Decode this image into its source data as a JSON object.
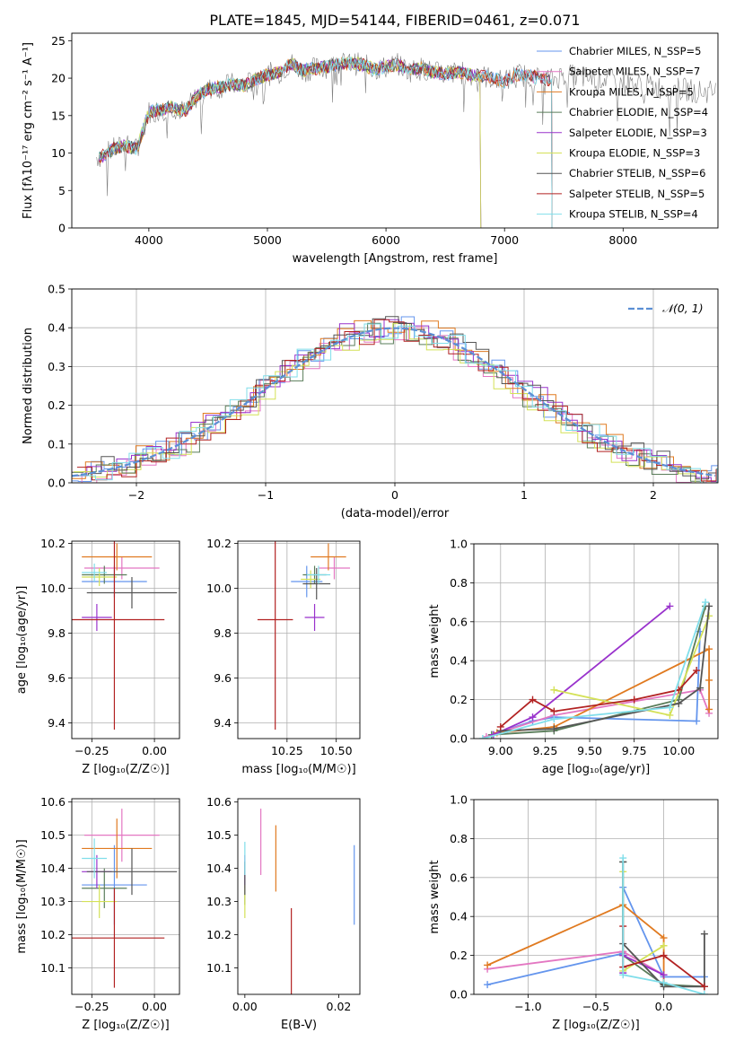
{
  "figure": {
    "title": "PLATE=1845, MJD=54144, FIBERID=0461, z=0.071"
  },
  "chart_data": [
    {
      "id": "spectrum",
      "type": "line",
      "xlabel": "wavelength [Angstrom, rest frame]",
      "ylabel": "Flux [fλ10⁻¹⁷ erg cm⁻² s⁻¹ A⁻¹]",
      "xlim": [
        3350,
        8800
      ],
      "ylim": [
        0,
        26
      ],
      "xticks": [
        4000,
        5000,
        6000,
        7000,
        8000
      ],
      "yticks": [
        0,
        5,
        10,
        15,
        20,
        25
      ],
      "grid": false,
      "legend_position": "top-right",
      "observed": {
        "x": [
          3600,
          3700,
          3800,
          3900,
          4000,
          4100,
          4200,
          4300,
          4400,
          4500,
          4600,
          4700,
          4800,
          4900,
          5000,
          5100,
          5200,
          5300,
          5400,
          5500,
          5600,
          5700,
          5800,
          5900,
          6000,
          6100,
          6200,
          6300,
          6400,
          6500,
          6600,
          6700,
          6800,
          6900,
          7000,
          7100,
          7200,
          7300,
          7400,
          7500,
          7600,
          7700,
          7800,
          7900,
          8000,
          8100,
          8200,
          8300,
          8400,
          8500,
          8600,
          8700
        ],
        "y": [
          9.5,
          10.5,
          11.0,
          10.5,
          15.5,
          15.8,
          16.2,
          15.5,
          17.5,
          18.5,
          18.8,
          19.2,
          19.0,
          19.8,
          20.5,
          20.8,
          22.0,
          21.0,
          21.3,
          21.5,
          21.8,
          22.0,
          21.8,
          21.2,
          21.5,
          21.8,
          21.0,
          21.3,
          20.8,
          20.5,
          20.8,
          20.5,
          20.3,
          20.0,
          19.5,
          20.5,
          20.3,
          20.0,
          19.8,
          20.5,
          20.2,
          20.0,
          20.0,
          19.8,
          19.5,
          19.2,
          19.0,
          18.8,
          18.6,
          18.5,
          18.3,
          18.2
        ]
      },
      "series": [
        {
          "name": "Chabrier MILES, N_SSP=5",
          "color": "#6495ed",
          "xmax": 7400
        },
        {
          "name": "Salpeter MILES, N_SSP=7",
          "color": "#e377c2",
          "xmax": 7400
        },
        {
          "name": "Kroupa MILES, N_SSP=5",
          "color": "#e07a20",
          "xmax": 7400
        },
        {
          "name": "Chabrier ELODIE, N_SSP=4",
          "color": "#5a7d5a",
          "xmax": 6800
        },
        {
          "name": "Salpeter ELODIE, N_SSP=3",
          "color": "#9932cc",
          "xmax": 6800
        },
        {
          "name": "Kroupa ELODIE, N_SSP=3",
          "color": "#d4e157",
          "xmax": 6800
        },
        {
          "name": "Chabrier STELIB, N_SSP=6",
          "color": "#555555",
          "xmax": 7400
        },
        {
          "name": "Salpeter STELIB, N_SSP=5",
          "color": "#b22222",
          "xmax": 7400
        },
        {
          "name": "Kroupa STELIB, N_SSP=4",
          "color": "#80deea",
          "xmax": 7400
        }
      ]
    },
    {
      "id": "residuals",
      "type": "line",
      "xlabel": "(data-model)/error",
      "ylabel": "Normed distribution",
      "xlim": [
        -2.5,
        2.5
      ],
      "ylim": [
        0,
        0.5
      ],
      "xticks": [
        -2,
        -1,
        0,
        1,
        2
      ],
      "yticks": [
        0.0,
        0.1,
        0.2,
        0.3,
        0.4,
        0.5
      ],
      "grid": true,
      "legend_position": "top-right",
      "gaussian": {
        "name": "𝒩(0, 1)",
        "color": "#5b8fd4",
        "mean": 0,
        "sigma": 1
      },
      "histograms": [
        {
          "color": "#6495ed",
          "offset": 0.006
        },
        {
          "color": "#e377c2",
          "offset": -0.012
        },
        {
          "color": "#e07a20",
          "offset": 0.01
        },
        {
          "color": "#5a7d5a",
          "offset": -0.02
        },
        {
          "color": "#9932cc",
          "offset": 0.018
        },
        {
          "color": "#d4e157",
          "offset": -0.025
        },
        {
          "color": "#555555",
          "offset": 0.014
        },
        {
          "color": "#b22222",
          "offset": -0.008
        },
        {
          "color": "#80deea",
          "offset": 0.004
        }
      ]
    },
    {
      "id": "age-vs-z",
      "type": "scatter",
      "xlabel": "Z [log₁₀(Z/Z☉)]",
      "ylabel": "age  [log₁₀(age/yr)]",
      "xlim": [
        -0.33,
        0.1
      ],
      "ylim": [
        9.33,
        10.21
      ],
      "xticks": [
        -0.25,
        0.0
      ],
      "xtick_labels": [
        "−0.25",
        "0.00"
      ],
      "yticks": [
        9.4,
        9.6,
        9.8,
        10.0,
        10.2
      ],
      "grid": true,
      "points": [
        {
          "color": "#6495ed",
          "x": -0.16,
          "xerr": 0.13,
          "y": 10.03,
          "yerr": 0.07
        },
        {
          "color": "#e377c2",
          "x": -0.13,
          "xerr": 0.15,
          "y": 10.09,
          "yerr": 0.05
        },
        {
          "color": "#e07a20",
          "x": -0.15,
          "xerr": 0.14,
          "y": 10.14,
          "yerr": 0.06
        },
        {
          "color": "#5a7d5a",
          "x": -0.2,
          "xerr": 0.09,
          "y": 10.06,
          "yerr": 0.04
        },
        {
          "color": "#9932cc",
          "x": -0.23,
          "xerr": 0.06,
          "y": 9.87,
          "yerr": 0.06
        },
        {
          "color": "#d4e157",
          "x": -0.22,
          "xerr": 0.07,
          "y": 10.05,
          "yerr": 0.04
        },
        {
          "color": "#555555",
          "x": -0.09,
          "xerr": 0.18,
          "y": 9.98,
          "yerr": 0.07
        },
        {
          "color": "#b22222",
          "x": -0.16,
          "xerr": 0.2,
          "y": 9.86,
          "yerr": 0.49
        },
        {
          "color": "#80deea",
          "x": -0.24,
          "xerr": 0.05,
          "y": 10.07,
          "yerr": 0.04
        }
      ]
    },
    {
      "id": "age-vs-mass",
      "type": "scatter",
      "xlabel": "mass [log₁₀(M/M☉)]",
      "ylabel": "",
      "xlim": [
        10.0,
        10.62
      ],
      "ylim": [
        9.33,
        10.21
      ],
      "xticks": [
        10.25,
        10.5
      ],
      "xtick_labels": [
        "10.25",
        "10.50"
      ],
      "yticks": [
        9.4,
        9.6,
        9.8,
        10.0,
        10.2
      ],
      "grid": true,
      "points": [
        {
          "color": "#6495ed",
          "x": 10.35,
          "xerr": 0.08,
          "y": 10.03,
          "yerr": 0.07
        },
        {
          "color": "#e377c2",
          "x": 10.49,
          "xerr": 0.08,
          "y": 10.09,
          "yerr": 0.05
        },
        {
          "color": "#e07a20",
          "x": 10.46,
          "xerr": 0.09,
          "y": 10.14,
          "yerr": 0.06
        },
        {
          "color": "#5a7d5a",
          "x": 10.39,
          "xerr": 0.06,
          "y": 10.06,
          "yerr": 0.04
        },
        {
          "color": "#9932cc",
          "x": 10.39,
          "xerr": 0.05,
          "y": 9.87,
          "yerr": 0.06
        },
        {
          "color": "#d4e157",
          "x": 10.37,
          "xerr": 0.05,
          "y": 10.04,
          "yerr": 0.04
        },
        {
          "color": "#555555",
          "x": 10.4,
          "xerr": 0.07,
          "y": 10.02,
          "yerr": 0.07
        },
        {
          "color": "#b22222",
          "x": 10.19,
          "xerr": 0.09,
          "y": 9.86,
          "yerr": 0.49
        },
        {
          "color": "#80deea",
          "x": 10.41,
          "xerr": 0.06,
          "y": 10.06,
          "yerr": 0.04
        }
      ]
    },
    {
      "id": "weight-vs-age",
      "type": "line",
      "xlabel": "age  [log₁₀(age/yr)]",
      "ylabel": "mass weight",
      "xlim": [
        8.85,
        10.22
      ],
      "ylim": [
        0,
        1
      ],
      "xticks": [
        9.0,
        9.25,
        9.5,
        9.75,
        10.0
      ],
      "xtick_labels": [
        "9.00",
        "9.25",
        "9.50",
        "9.75",
        "10.00"
      ],
      "yticks": [
        0.0,
        0.2,
        0.4,
        0.6,
        0.8,
        1.0
      ],
      "grid": true,
      "series": [
        {
          "color": "#6495ed",
          "x": [
            8.95,
            9.18,
            9.3,
            10.1,
            10.12
          ],
          "y": [
            0.02,
            0.09,
            0.11,
            0.09,
            0.55
          ]
        },
        {
          "color": "#e377c2",
          "x": [
            8.92,
            9.3,
            10.12,
            10.17
          ],
          "y": [
            0.01,
            0.12,
            0.25,
            0.13
          ]
        },
        {
          "color": "#e07a20",
          "x": [
            8.98,
            9.3,
            10.17,
            10.17,
            10.17
          ],
          "y": [
            0.03,
            0.06,
            0.46,
            0.15,
            0.3
          ]
        },
        {
          "color": "#5a7d5a",
          "x": [
            8.95,
            9.3,
            10.0,
            10.15
          ],
          "y": [
            0.02,
            0.04,
            0.2,
            0.68
          ]
        },
        {
          "color": "#9932cc",
          "x": [
            8.96,
            9.18,
            9.95
          ],
          "y": [
            0.02,
            0.11,
            0.68
          ]
        },
        {
          "color": "#d4e157",
          "x": [
            9.3,
            9.95,
            10.17
          ],
          "y": [
            0.25,
            0.12,
            0.63
          ]
        },
        {
          "color": "#555555",
          "x": [
            9.0,
            9.3,
            10.0,
            10.12,
            10.17
          ],
          "y": [
            0.04,
            0.05,
            0.18,
            0.26,
            0.68
          ]
        },
        {
          "color": "#b22222",
          "x": [
            9.0,
            9.18,
            9.3,
            9.75,
            10.0,
            10.1
          ],
          "y": [
            0.06,
            0.2,
            0.14,
            0.2,
            0.25,
            0.35
          ]
        },
        {
          "color": "#80deea",
          "x": [
            8.9,
            9.3,
            9.95,
            10.15
          ],
          "y": [
            0.0,
            0.1,
            0.16,
            0.7
          ]
        }
      ]
    },
    {
      "id": "mass-vs-z",
      "type": "scatter",
      "xlabel": "Z [log₁₀(Z/Z☉)]",
      "ylabel": "mass [log₁₀(M/M☉)]",
      "xlim": [
        -0.33,
        0.1
      ],
      "ylim": [
        10.02,
        10.61
      ],
      "xticks": [
        -0.25,
        0.0
      ],
      "xtick_labels": [
        "−0.25",
        "0.00"
      ],
      "yticks": [
        10.1,
        10.2,
        10.3,
        10.4,
        10.5,
        10.6
      ],
      "grid": true,
      "points": [
        {
          "color": "#6495ed",
          "x": -0.16,
          "xerr": 0.13,
          "y": 10.35,
          "yerr": 0.12
        },
        {
          "color": "#e377c2",
          "x": -0.13,
          "xerr": 0.15,
          "y": 10.5,
          "yerr": 0.08
        },
        {
          "color": "#e07a20",
          "x": -0.15,
          "xerr": 0.14,
          "y": 10.46,
          "yerr": 0.09
        },
        {
          "color": "#5a7d5a",
          "x": -0.2,
          "xerr": 0.09,
          "y": 10.34,
          "yerr": 0.06
        },
        {
          "color": "#9932cc",
          "x": -0.23,
          "xerr": 0.06,
          "y": 10.39,
          "yerr": 0.05
        },
        {
          "color": "#d4e157",
          "x": -0.22,
          "xerr": 0.07,
          "y": 10.3,
          "yerr": 0.05
        },
        {
          "color": "#555555",
          "x": -0.09,
          "xerr": 0.18,
          "y": 10.39,
          "yerr": 0.07
        },
        {
          "color": "#b22222",
          "x": -0.16,
          "xerr": 0.2,
          "y": 10.19,
          "yerr": 0.15
        },
        {
          "color": "#80deea",
          "x": -0.24,
          "xerr": 0.05,
          "y": 10.43,
          "yerr": 0.06
        }
      ]
    },
    {
      "id": "mass-vs-ebv",
      "type": "scatter",
      "xlabel": "E(B-V)",
      "ylabel": "",
      "xlim": [
        -0.0015,
        0.0245
      ],
      "ylim": [
        10.02,
        10.61
      ],
      "xticks": [
        0.0,
        0.02
      ],
      "xtick_labels": [
        "0.00",
        "0.02"
      ],
      "yticks": [
        10.1,
        10.2,
        10.3,
        10.4,
        10.5,
        10.6
      ],
      "grid": false,
      "points": [
        {
          "color": "#6495ed",
          "x": 0.0233,
          "y": 10.35,
          "yerr": 0.12
        },
        {
          "color": "#e377c2",
          "x": 0.0034,
          "y": 10.48,
          "yerr": 0.1
        },
        {
          "color": "#e07a20",
          "x": 0.0066,
          "y": 10.43,
          "yerr": 0.1
        },
        {
          "color": "#5a7d5a",
          "x": 0.0,
          "y": 10.34,
          "yerr": 0.05
        },
        {
          "color": "#9932cc",
          "x": 0.0,
          "y": 10.39,
          "yerr": 0.05
        },
        {
          "color": "#d4e157",
          "x": 0.0,
          "y": 10.3,
          "yerr": 0.05
        },
        {
          "color": "#555555",
          "x": 0.0,
          "y": 10.37,
          "yerr": 0.05
        },
        {
          "color": "#b22222",
          "x": 0.0099,
          "y": 10.14,
          "yerr": 0.14
        },
        {
          "color": "#80deea",
          "x": 0.0,
          "y": 10.43,
          "yerr": 0.05
        }
      ]
    },
    {
      "id": "weight-vs-z",
      "type": "line",
      "xlabel": "Z [log₁₀(Z/Z☉)]",
      "ylabel": "mass weight",
      "xlim": [
        -1.4,
        0.4
      ],
      "ylim": [
        0,
        1
      ],
      "xticks": [
        -1.0,
        -0.5,
        0.0
      ],
      "xtick_labels": [
        "−1.0",
        "−0.5",
        "0.0"
      ],
      "yticks": [
        0.0,
        0.2,
        0.4,
        0.6,
        0.8,
        1.0
      ],
      "grid": true,
      "series": [
        {
          "color": "#6495ed",
          "x": [
            -1.3,
            -0.3,
            -0.3,
            0.0,
            0.3
          ],
          "y": [
            0.05,
            0.21,
            0.55,
            0.09,
            0.09
          ]
        },
        {
          "color": "#e377c2",
          "x": [
            -1.3,
            -0.3,
            0.0
          ],
          "y": [
            0.13,
            0.22,
            0.1
          ]
        },
        {
          "color": "#e07a20",
          "x": [
            -1.3,
            -0.3,
            0.0,
            0.0
          ],
          "y": [
            0.15,
            0.46,
            0.29,
            0.05
          ]
        },
        {
          "color": "#5a7d5a",
          "x": [
            -0.3,
            -0.3,
            0.0,
            0.3
          ],
          "y": [
            0.68,
            0.2,
            0.05,
            0.04
          ]
        },
        {
          "color": "#9932cc",
          "x": [
            -0.3,
            -0.3,
            0.0
          ],
          "y": [
            0.11,
            0.2,
            0.1
          ]
        },
        {
          "color": "#d4e157",
          "x": [
            -0.3,
            -0.3,
            0.0
          ],
          "y": [
            0.63,
            0.12,
            0.25
          ]
        },
        {
          "color": "#555555",
          "x": [
            -0.3,
            -0.3,
            0.0,
            0.3,
            0.3
          ],
          "y": [
            0.68,
            0.26,
            0.04,
            0.04,
            0.31
          ]
        },
        {
          "color": "#b22222",
          "x": [
            -0.3,
            -0.3,
            0.0,
            0.3
          ],
          "y": [
            0.35,
            0.14,
            0.2,
            0.04
          ]
        },
        {
          "color": "#80deea",
          "x": [
            -0.3,
            -0.3,
            0.0,
            0.3
          ],
          "y": [
            0.7,
            0.1,
            0.06,
            0.0
          ]
        }
      ]
    }
  ]
}
